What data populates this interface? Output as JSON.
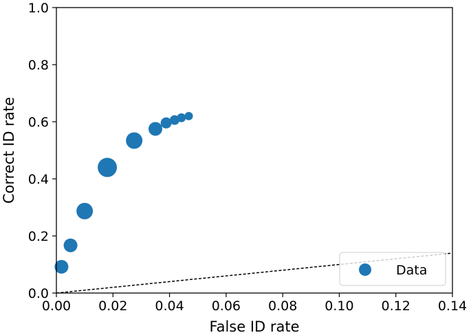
{
  "chart_data": {
    "type": "scatter",
    "xlabel": "False ID rate",
    "ylabel": "Correct ID rate",
    "xlim": [
      0.0,
      0.14
    ],
    "ylim": [
      0.0,
      1.0
    ],
    "xticks": [
      0.0,
      0.02,
      0.04,
      0.06,
      0.08,
      0.1,
      0.12,
      0.14
    ],
    "xtick_labels": [
      "0.00",
      "0.02",
      "0.04",
      "0.06",
      "0.08",
      "0.10",
      "0.12",
      "0.14"
    ],
    "yticks": [
      0.0,
      0.2,
      0.4,
      0.6,
      0.8,
      1.0
    ],
    "ytick_labels": [
      "0.0",
      "0.2",
      "0.4",
      "0.6",
      "0.8",
      "1.0"
    ],
    "grid": false,
    "legend_position": "bottom-right",
    "marker_color": "#1f77b4",
    "series": [
      {
        "name": "Data",
        "points": [
          {
            "x": 0.0018,
            "y": 0.092,
            "size": 3
          },
          {
            "x": 0.005,
            "y": 0.167,
            "size": 3
          },
          {
            "x": 0.01,
            "y": 0.287,
            "size": 4
          },
          {
            "x": 0.018,
            "y": 0.44,
            "size": 5
          },
          {
            "x": 0.0275,
            "y": 0.534,
            "size": 4
          },
          {
            "x": 0.035,
            "y": 0.575,
            "size": 3
          },
          {
            "x": 0.0388,
            "y": 0.596,
            "size": 2
          },
          {
            "x": 0.0418,
            "y": 0.606,
            "size": 1.5
          },
          {
            "x": 0.0442,
            "y": 0.614,
            "size": 1.2
          },
          {
            "x": 0.0468,
            "y": 0.62,
            "size": 1
          }
        ]
      }
    ],
    "reference_line": {
      "slope": 1.0,
      "color": "#000000",
      "style": "dashed"
    }
  }
}
